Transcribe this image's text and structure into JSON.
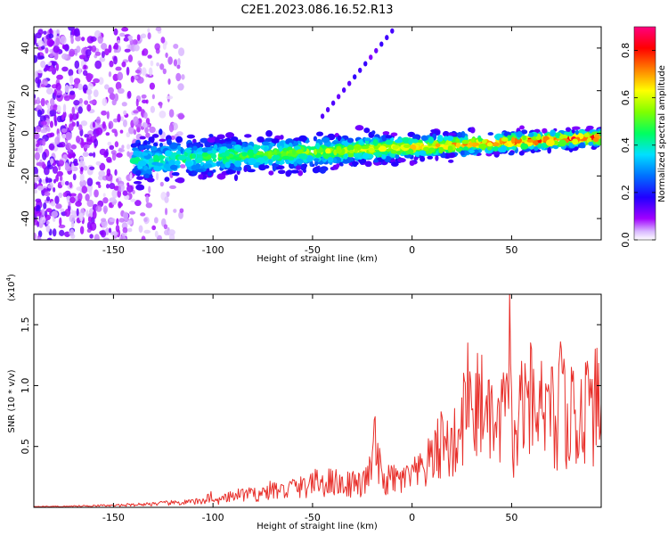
{
  "chart_data": [
    {
      "type": "heatmap",
      "title": "C2E1.2023.086.16.52.R13",
      "xlabel": "Height of straight line (km)",
      "ylabel": "Frequency (Hz)",
      "colorbar_label": "Normalized spectral amplitude",
      "xlim": [
        -190,
        95
      ],
      "ylim": [
        -50,
        50
      ],
      "x_ticks": [
        -150,
        -100,
        -50,
        0,
        50
      ],
      "y_ticks": [
        -40,
        -20,
        0,
        20,
        40
      ],
      "colorbar_range": [
        0.0,
        0.9
      ],
      "colorbar_ticks": [
        "0.0",
        "0.2",
        "0.4",
        "0.6",
        "0.8"
      ],
      "colormap": [
        "#ffffff",
        "#a000ff",
        "#0000ff",
        "#00c0ff",
        "#00ff80",
        "#80ff00",
        "#ffff00",
        "#ff8000",
        "#ff0000",
        "#ff0080"
      ],
      "features": [
        {
          "name": "noise band",
          "x_range": [
            -190,
            -115
          ],
          "y_range": [
            -50,
            50
          ]
        },
        {
          "name": "central ridge",
          "x_range": [
            -140,
            95
          ],
          "center_hz_at_start": -13,
          "center_hz_at_end": -2
        },
        {
          "name": "diagonal streak",
          "x_start": -45,
          "y_start": 8,
          "x_end": -10,
          "y_end": 48
        }
      ],
      "grid": false
    },
    {
      "type": "line",
      "xlabel": "Height of straight line (km)",
      "ylabel": "SNR (10 * v/v)",
      "multiplier_label": "(x10",
      "multiplier_exponent": "4",
      "multiplier_close": ")",
      "xlim": [
        -190,
        95
      ],
      "ylim": [
        0,
        1.75
      ],
      "x_ticks": [
        -150,
        -100,
        -50,
        0,
        50
      ],
      "y_tick_labels": [
        "0.5",
        "1.0",
        "1.5"
      ],
      "y_ticks": [
        0.5,
        1.0,
        1.5
      ],
      "color": "#e8302b",
      "grid": false,
      "series": [
        {
          "x": [
            -190,
            -175,
            -160,
            -150,
            -140,
            -130,
            -120,
            -110,
            -105,
            -101,
            -100,
            -95,
            -90,
            -85,
            -80,
            -75,
            -70,
            -65,
            -60,
            -55,
            -50,
            -45,
            -40,
            -35,
            -30,
            -25,
            -20,
            -19,
            -15,
            -10,
            -5,
            0,
            5,
            10,
            12,
            15,
            20,
            25,
            28,
            30,
            32,
            35,
            37,
            40,
            42,
            45,
            48,
            49,
            50,
            52,
            55,
            58,
            60,
            62,
            65,
            68,
            70,
            72,
            75,
            78,
            80,
            82,
            85,
            88,
            90,
            92,
            95
          ],
          "values": [
            0.01,
            0.01,
            0.02,
            0.02,
            0.03,
            0.04,
            0.05,
            0.06,
            0.07,
            0.13,
            0.06,
            0.09,
            0.12,
            0.15,
            0.14,
            0.16,
            0.2,
            0.18,
            0.23,
            0.22,
            0.28,
            0.26,
            0.3,
            0.25,
            0.28,
            0.24,
            0.45,
            0.72,
            0.28,
            0.32,
            0.3,
            0.35,
            0.4,
            0.55,
            0.6,
            0.75,
            0.65,
            0.9,
            1.35,
            0.8,
            1.1,
            1.25,
            0.85,
            1.0,
            0.7,
            1.05,
            1.0,
            1.78,
            0.95,
            0.6,
            1.2,
            0.9,
            1.3,
            0.7,
            1.2,
            0.95,
            1.15,
            0.75,
            1.3,
            0.85,
            1.15,
            0.8,
            1.05,
            1.2,
            0.9,
            1.3,
            0.85
          ]
        }
      ]
    }
  ]
}
